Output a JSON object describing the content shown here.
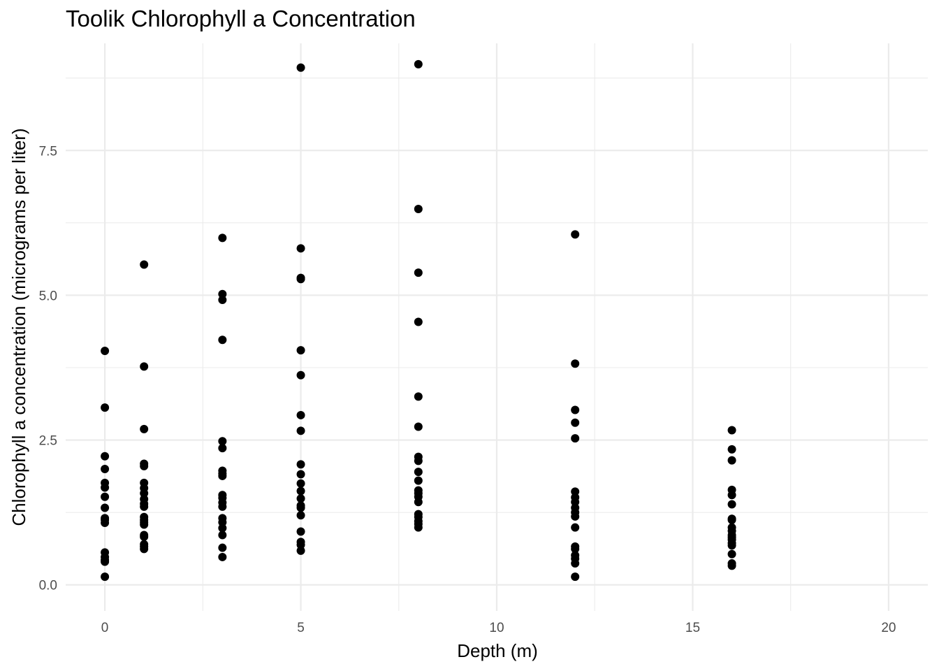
{
  "chart_data": {
    "type": "scatter",
    "title": "Toolik Chlorophyll a Concentration",
    "xlabel": "Depth (m)",
    "ylabel": "Chlorophyll a concentration (micrograms per liter)",
    "xlim": [
      -1,
      21
    ],
    "ylim": [
      -0.45,
      9.35
    ],
    "x_ticks": [
      0,
      5,
      10,
      15,
      20
    ],
    "x_tick_labels": [
      "0",
      "5",
      "10",
      "15",
      "20"
    ],
    "y_ticks": [
      0,
      2.5,
      5,
      7.5
    ],
    "y_tick_labels": [
      "0.0",
      "2.5",
      "5.0",
      "7.5"
    ],
    "x_minor": [
      2.5,
      7.5,
      12.5,
      17.5
    ],
    "y_minor": [
      1.25,
      3.75,
      6.25,
      8.75
    ],
    "grid": true,
    "point_color": "#000000",
    "points": [
      [
        0,
        4.04
      ],
      [
        0,
        3.06
      ],
      [
        0,
        2.22
      ],
      [
        0,
        2.0
      ],
      [
        0,
        1.76
      ],
      [
        0,
        1.68
      ],
      [
        0,
        1.52
      ],
      [
        0,
        1.33
      ],
      [
        0,
        1.15
      ],
      [
        0,
        1.12
      ],
      [
        0,
        1.07
      ],
      [
        0,
        0.56
      ],
      [
        0,
        0.48
      ],
      [
        0,
        0.43
      ],
      [
        0,
        0.4
      ],
      [
        0,
        0.14
      ],
      [
        1,
        5.53
      ],
      [
        1,
        3.77
      ],
      [
        1,
        2.69
      ],
      [
        1,
        2.09
      ],
      [
        1,
        2.05
      ],
      [
        1,
        1.76
      ],
      [
        1,
        1.67
      ],
      [
        1,
        1.58
      ],
      [
        1,
        1.48
      ],
      [
        1,
        1.4
      ],
      [
        1,
        1.35
      ],
      [
        1,
        1.17
      ],
      [
        1,
        1.12
      ],
      [
        1,
        1.08
      ],
      [
        1,
        1.04
      ],
      [
        1,
        0.86
      ],
      [
        1,
        0.83
      ],
      [
        1,
        0.7
      ],
      [
        1,
        0.66
      ],
      [
        1,
        0.62
      ],
      [
        3,
        5.99
      ],
      [
        3,
        5.02
      ],
      [
        3,
        4.92
      ],
      [
        3,
        4.23
      ],
      [
        3,
        2.48
      ],
      [
        3,
        2.36
      ],
      [
        3,
        1.97
      ],
      [
        3,
        1.92
      ],
      [
        3,
        1.88
      ],
      [
        3,
        1.55
      ],
      [
        3,
        1.5
      ],
      [
        3,
        1.42
      ],
      [
        3,
        1.35
      ],
      [
        3,
        1.15
      ],
      [
        3,
        1.08
      ],
      [
        3,
        0.98
      ],
      [
        3,
        0.86
      ],
      [
        3,
        0.64
      ],
      [
        3,
        0.48
      ],
      [
        5,
        8.93
      ],
      [
        5,
        5.81
      ],
      [
        5,
        5.3
      ],
      [
        5,
        5.28
      ],
      [
        5,
        4.05
      ],
      [
        5,
        3.62
      ],
      [
        5,
        2.93
      ],
      [
        5,
        2.66
      ],
      [
        5,
        2.08
      ],
      [
        5,
        1.91
      ],
      [
        5,
        1.75
      ],
      [
        5,
        1.62
      ],
      [
        5,
        1.49
      ],
      [
        5,
        1.37
      ],
      [
        5,
        1.33
      ],
      [
        5,
        1.2
      ],
      [
        5,
        0.92
      ],
      [
        5,
        0.74
      ],
      [
        5,
        0.69
      ],
      [
        5,
        0.59
      ],
      [
        8,
        8.99
      ],
      [
        8,
        6.49
      ],
      [
        8,
        5.39
      ],
      [
        8,
        4.54
      ],
      [
        8,
        3.25
      ],
      [
        8,
        2.73
      ],
      [
        8,
        2.21
      ],
      [
        8,
        2.14
      ],
      [
        8,
        1.95
      ],
      [
        8,
        1.8
      ],
      [
        8,
        1.63
      ],
      [
        8,
        1.58
      ],
      [
        8,
        1.52
      ],
      [
        8,
        1.43
      ],
      [
        8,
        1.22
      ],
      [
        8,
        1.17
      ],
      [
        8,
        1.1
      ],
      [
        8,
        1.05
      ],
      [
        8,
        0.99
      ],
      [
        12,
        6.05
      ],
      [
        12,
        3.82
      ],
      [
        12,
        3.02
      ],
      [
        12,
        2.8
      ],
      [
        12,
        2.53
      ],
      [
        12,
        1.61
      ],
      [
        12,
        1.51
      ],
      [
        12,
        1.43
      ],
      [
        12,
        1.33
      ],
      [
        12,
        1.25
      ],
      [
        12,
        1.18
      ],
      [
        12,
        0.99
      ],
      [
        12,
        0.66
      ],
      [
        12,
        0.62
      ],
      [
        12,
        0.51
      ],
      [
        12,
        0.45
      ],
      [
        12,
        0.37
      ],
      [
        12,
        0.14
      ],
      [
        16,
        2.67
      ],
      [
        16,
        2.34
      ],
      [
        16,
        2.15
      ],
      [
        16,
        1.64
      ],
      [
        16,
        1.55
      ],
      [
        16,
        1.39
      ],
      [
        16,
        1.14
      ],
      [
        16,
        1.12
      ],
      [
        16,
        0.99
      ],
      [
        16,
        0.93
      ],
      [
        16,
        0.86
      ],
      [
        16,
        0.82
      ],
      [
        16,
        0.78
      ],
      [
        16,
        0.72
      ],
      [
        16,
        0.68
      ],
      [
        16,
        0.53
      ],
      [
        16,
        0.37
      ],
      [
        16,
        0.33
      ]
    ]
  }
}
